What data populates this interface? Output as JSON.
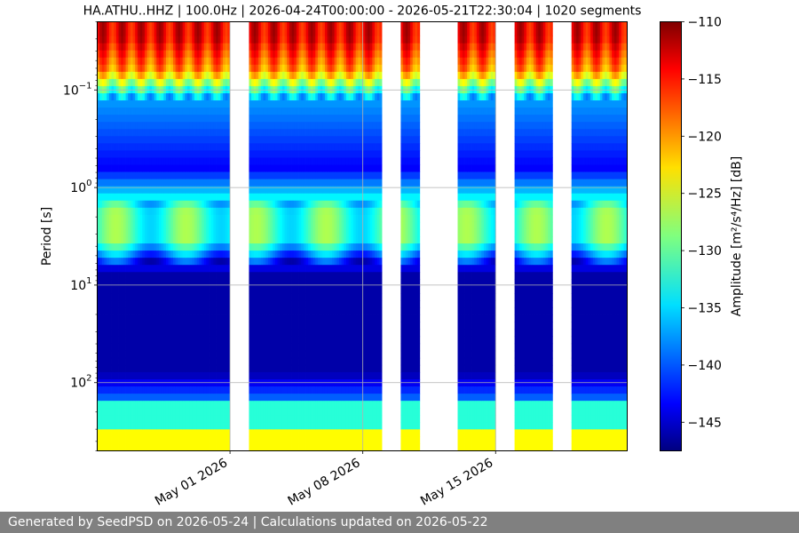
{
  "chart_data": {
    "type": "heatmap",
    "title": "HA.ATHU..HHZ | 100.0Hz | 2026-04-24T00:00:00 - 2026-05-21T22:30:04 | 1020 segments",
    "ylabel": "Period [s]",
    "yscale": "log",
    "yaxis_inverted": true,
    "ylim": [
      0.02,
      500
    ],
    "yticks": [
      {
        "value": 0.1,
        "base": "10",
        "exp": "−1"
      },
      {
        "value": 1,
        "base": "10",
        "exp": "0"
      },
      {
        "value": 10,
        "base": "10",
        "exp": "1"
      },
      {
        "value": 100,
        "base": "10",
        "exp": "2"
      }
    ],
    "xaxis": "date",
    "xlim": [
      "2026-04-24T00:00:00",
      "2026-05-21T22:30:04"
    ],
    "xticks": [
      {
        "date": "2026-05-01",
        "label": "May 01 2026"
      },
      {
        "date": "2026-05-08",
        "label": "May 08 2026"
      },
      {
        "date": "2026-05-15",
        "label": "May 15 2026"
      }
    ],
    "grid": true,
    "colormap": "jet",
    "colorbar": {
      "label": "Amplitude [m²/s⁴/Hz] [dB]",
      "range": [
        -147.5,
        -110
      ],
      "ticks": [
        "−110",
        "−115",
        "−120",
        "−125",
        "−130",
        "−135",
        "−140",
        "−145"
      ],
      "tick_values": [
        -110,
        -115,
        -120,
        -125,
        -130,
        -135,
        -140,
        -145
      ]
    },
    "data_segments": [
      {
        "start": "2026-04-24T00:00",
        "end": "2026-05-01T00:00"
      },
      {
        "start": "2026-05-02T00:00",
        "end": "2026-05-09T00:00"
      },
      {
        "start": "2026-05-10T00:00",
        "end": "2026-05-11T00:00"
      },
      {
        "start": "2026-05-13T00:00",
        "end": "2026-05-15T00:00"
      },
      {
        "start": "2026-05-16T00:00",
        "end": "2026-05-18T00:00"
      },
      {
        "start": "2026-05-19T00:00",
        "end": "2026-05-21T22:30"
      }
    ],
    "segments": 1020
  },
  "footer": {
    "text": "Generated by SeedPSD on 2026-05-24 | Calculations updated on 2026-05-22"
  }
}
